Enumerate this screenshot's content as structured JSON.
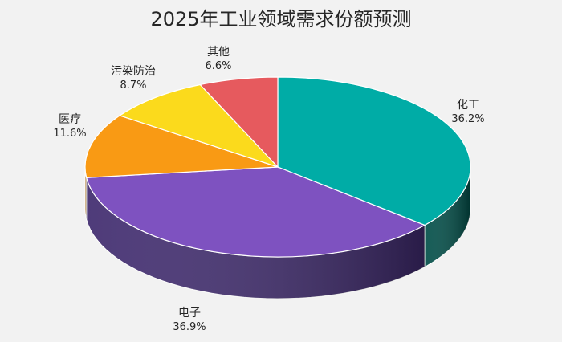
{
  "chart_data": {
    "type": "pie",
    "style": "3d",
    "title": "2025年工业领域需求份额预测",
    "categories": [
      "化工",
      "电子",
      "医疗",
      "污染防治",
      "其他"
    ],
    "values": [
      36.2,
      36.9,
      11.6,
      8.7,
      6.6
    ],
    "unit": "%",
    "colors": [
      "#00ACA6",
      "#7E52C0",
      "#F99A14",
      "#FBDA1C",
      "#E65A5E"
    ],
    "side_colors": [
      "#004D47",
      "#3F2A6E",
      "#B26A0A",
      "#B39A10",
      "#A03A3E"
    ],
    "start_angle": "12 o'clock",
    "direction": "clockwise",
    "labels": [
      {
        "name": "化工",
        "value": "36.2%"
      },
      {
        "name": "电子",
        "value": "36.9%"
      },
      {
        "name": "医疗",
        "value": "11.6%"
      },
      {
        "name": "污染防治",
        "value": "8.7%"
      },
      {
        "name": "其他",
        "value": "6.6%"
      }
    ],
    "legend": "none",
    "background": "#F2F2F2"
  }
}
